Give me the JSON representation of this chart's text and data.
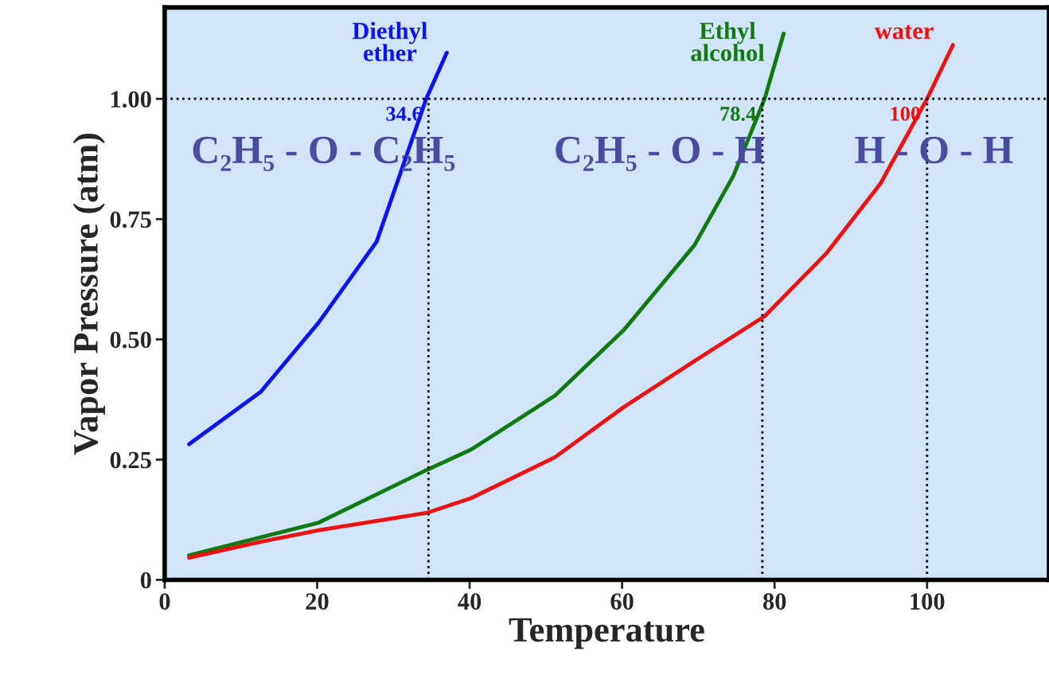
{
  "chart_data": {
    "type": "line",
    "xlabel": "Temperature",
    "ylabel": "Vapor Pressure (atm)",
    "xlim": [
      0,
      116
    ],
    "xticks": [
      0,
      20,
      40,
      60,
      80,
      100
    ],
    "ylim": [
      0,
      1.19
    ],
    "yticks": [
      0,
      {
        "value": 0.25,
        "label": "0.25"
      },
      {
        "value": 0.5,
        "label": "0.50"
      },
      {
        "value": 0.75,
        "label": "0.75"
      },
      {
        "value": 1.0,
        "label": "1.00"
      }
    ],
    "grid": false,
    "legend": false,
    "line_style": "solid",
    "marker": "none",
    "series": [
      {
        "name": "Diethyl\nether",
        "color": "#0a14f0",
        "x": [
          3.2,
          12.6,
          20.2,
          27.8,
          34.3,
          37.0
        ],
        "values": [
          0.282,
          0.391,
          0.535,
          0.703,
          1.0,
          1.096
        ]
      },
      {
        "name": "Ethyl\nalcohol",
        "color": "#107a10",
        "x": [
          3.2,
          20.2,
          34.3,
          40.2,
          51.2,
          60.2,
          69.5,
          74.6,
          78.7,
          81.2
        ],
        "values": [
          0.051,
          0.119,
          0.228,
          0.271,
          0.383,
          0.519,
          0.696,
          0.84,
          1.0,
          1.136
        ]
      },
      {
        "name": "water",
        "color": "#f01010",
        "x": [
          3.2,
          12.6,
          20.2,
          34.3,
          40.2,
          51.2,
          60.2,
          69.5,
          78.7,
          86.8,
          93.9,
          100,
          103.4
        ],
        "values": [
          0.046,
          0.079,
          0.103,
          0.139,
          0.17,
          0.255,
          0.359,
          0.455,
          0.548,
          0.679,
          0.824,
          1.0,
          1.112
        ]
      }
    ],
    "ref_lines": [
      {
        "axis": "y",
        "value": 1.0,
        "line_style": "dotted",
        "color": "#000000"
      },
      {
        "axis": "x",
        "value": 34.6,
        "line_style": "dotted",
        "color": "#000000"
      },
      {
        "axis": "x",
        "value": 78.4,
        "line_style": "dotted",
        "color": "#000000"
      },
      {
        "axis": "x",
        "value": 100,
        "line_style": "dotted",
        "color": "#000000"
      }
    ],
    "annotations": [
      {
        "text": "34.6",
        "x": 34.6,
        "y": 1.0
      },
      {
        "text": "78.4",
        "x": 78.4,
        "y": 1.0
      },
      {
        "text": "100",
        "x": 100,
        "y": 1.0
      },
      "C₂H₅ - O - C₂H₅",
      "C₂H₅ - O - H",
      "H - O - H"
    ]
  }
}
